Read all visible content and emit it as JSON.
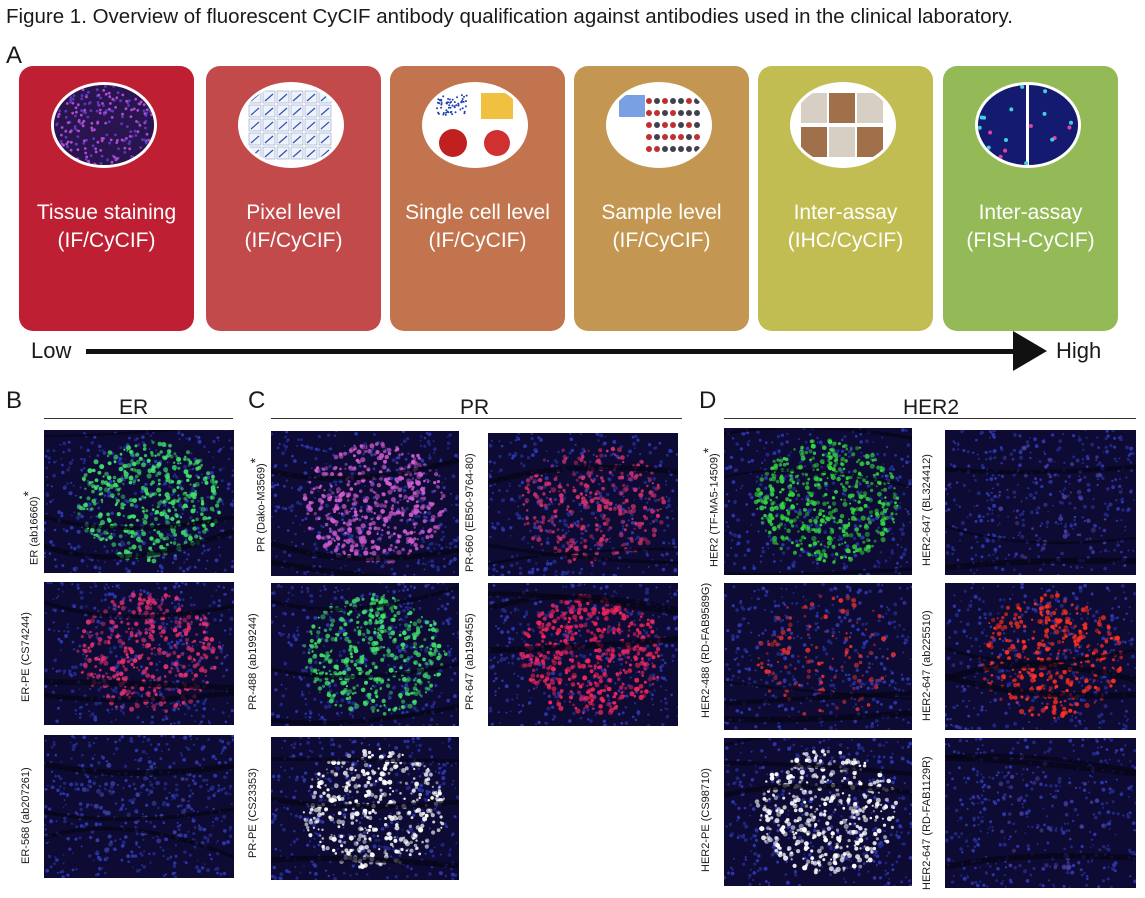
{
  "figure_title": "Figure 1. Overview of fluorescent CyCIF antibody qualification against antibodies used in the clinical laboratory.",
  "panel_letters": {
    "a": "A",
    "b": "B",
    "c": "C",
    "d": "D"
  },
  "panel_a": {
    "tiles": [
      {
        "line1": "Tissue staining",
        "line2": "(IF/CyCIF)",
        "color": "#bf1f33"
      },
      {
        "line1": "Pixel level",
        "line2": "(IF/CyCIF)",
        "color": "#c24a4a"
      },
      {
        "line1": "Single cell level",
        "line2": "(IF/CyCIF)",
        "color": "#c1744e"
      },
      {
        "line1": "Sample level",
        "line2": "(IF/CyCIF)",
        "color": "#c39752"
      },
      {
        "line1": "Inter-assay",
        "line2": "(IHC/CyCIF)",
        "color": "#c2bd52"
      },
      {
        "line1": "Inter-assay",
        "line2": "(FISH-CyCIF)",
        "color": "#94ba58"
      }
    ],
    "arrow_low": "Low",
    "arrow_high": "High"
  },
  "panel_b": {
    "header": "ER",
    "images": [
      {
        "label": "ER (ab16660)",
        "star": "*",
        "stain": "#3fe06a"
      },
      {
        "label": "ER-PE (CS74244)",
        "star": "",
        "stain": "#e0306e"
      },
      {
        "label": "ER-568 (ab207261)",
        "star": "",
        "stain": "#3a3fa0"
      }
    ]
  },
  "panel_c": {
    "header": "PR",
    "images": [
      {
        "label": "PR (Dako-M3569)",
        "star": "*",
        "stain": "#d05cd0"
      },
      {
        "label": "PR-660 (EB50-9764-80)",
        "star": "",
        "stain": "#d0306a"
      },
      {
        "label": "PR-488 (ab199244)",
        "star": "",
        "stain": "#3fe06a"
      },
      {
        "label": "PR-647 (ab199455)",
        "star": "",
        "stain": "#f0245a"
      },
      {
        "label": "PR-PE (CS23353)",
        "star": "",
        "stain": "#ffffff"
      }
    ]
  },
  "panel_d": {
    "header": "HER2",
    "images": [
      {
        "label": "HER2 (TF-MA5-14509)",
        "star": "*",
        "stain": "#33d640"
      },
      {
        "label": "HER2-647 (BL324412)",
        "star": "",
        "stain": "#4a3fa0"
      },
      {
        "label": "HER2-488 (RD-FAB9589G)",
        "star": "",
        "stain": "#e03030"
      },
      {
        "label": "HER2-647 (ab225510)",
        "star": "",
        "stain": "#ff3020"
      },
      {
        "label": "HER2-PE (CS98710)",
        "star": "",
        "stain": "#ffffff"
      },
      {
        "label": "HER2-647 (RD-FAB1129R)",
        "star": "",
        "stain": "#4a3fa0"
      }
    ]
  },
  "thumbnail_icons": [
    "tissue-thumbnail",
    "pixel-plot-thumbnail",
    "single-cell-thumbnail",
    "sample-heatmap-thumbnail",
    "ihc-thumbnail",
    "fish-thumbnail"
  ]
}
